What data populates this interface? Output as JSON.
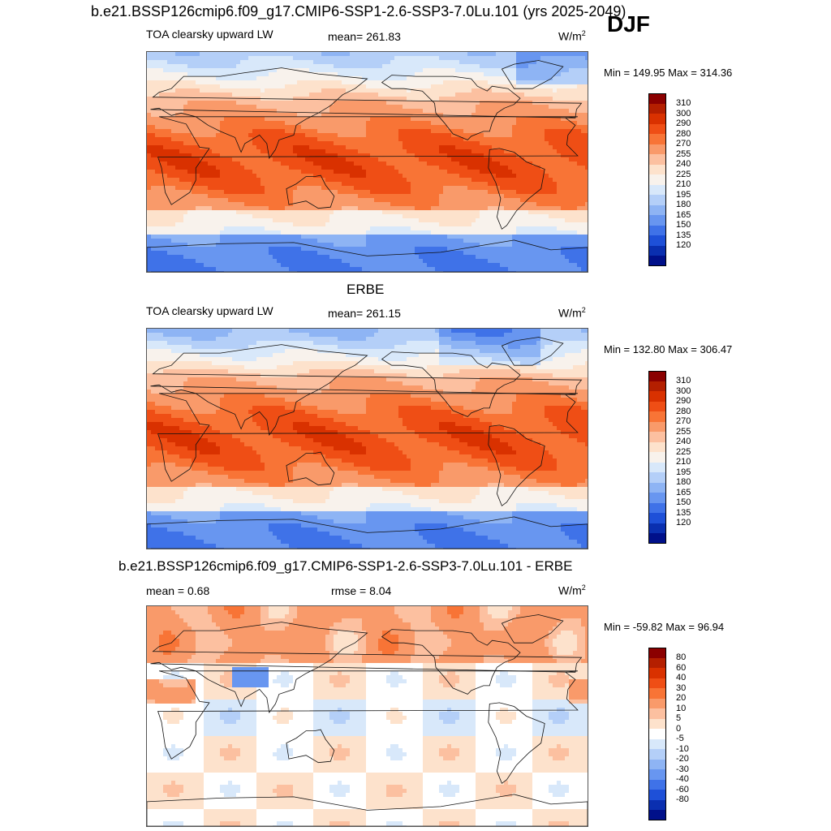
{
  "figure": {
    "main_title": "b.e21.BSSP126cmip6.f09_g17.CMIP6-SSP1-2.6-SSP3-7.0Lu.101 (yrs 2025-2049)",
    "season": "DJF"
  },
  "panels": [
    {
      "title": "",
      "left_label": "TOA clearsky upward LW",
      "center_label": "mean= 261.83",
      "units": "W/m",
      "units_exp": "2",
      "minmax": "Min = 149.95 Max = 314.36",
      "scale": "abs",
      "colorbar": {
        "levels": [
          "310",
          "300",
          "290",
          "280",
          "270",
          "255",
          "240",
          "225",
          "210",
          "195",
          "180",
          "165",
          "150",
          "135",
          "120"
        ],
        "colors": [
          "#8b0000",
          "#b41f00",
          "#d93100",
          "#ef4e15",
          "#f87436",
          "#f99a6a",
          "#fcc0a0",
          "#fde2cc",
          "#f8f2ec",
          "#d8e8fa",
          "#b4cff8",
          "#8eb4f4",
          "#6896f0",
          "#3f72e8",
          "#1e50d8",
          "#0a2fb0",
          "#00108a"
        ]
      }
    },
    {
      "title": "ERBE",
      "left_label": "TOA clearsky upward LW",
      "center_label": "mean= 261.15",
      "units": "W/m",
      "units_exp": "2",
      "minmax": "Min = 132.80 Max = 306.47",
      "scale": "abs",
      "colorbar": {
        "levels": [
          "310",
          "300",
          "290",
          "280",
          "270",
          "255",
          "240",
          "225",
          "210",
          "195",
          "180",
          "165",
          "150",
          "135",
          "120"
        ],
        "colors": [
          "#8b0000",
          "#b41f00",
          "#d93100",
          "#ef4e15",
          "#f87436",
          "#f99a6a",
          "#fcc0a0",
          "#fde2cc",
          "#f8f2ec",
          "#d8e8fa",
          "#b4cff8",
          "#8eb4f4",
          "#6896f0",
          "#3f72e8",
          "#1e50d8",
          "#0a2fb0",
          "#00108a"
        ]
      }
    },
    {
      "title": "b.e21.BSSP126cmip6.f09_g17.CMIP6-SSP1-2.6-SSP3-7.0Lu.101 - ERBE",
      "left_label": "mean =   0.68",
      "center_label": "rmse =   8.04",
      "units": "W/m",
      "units_exp": "2",
      "minmax": "Min = -59.82 Max =  96.94",
      "scale": "diff",
      "colorbar": {
        "levels": [
          "80",
          "60",
          "40",
          "30",
          "20",
          "10",
          "5",
          "0",
          "-5",
          "-10",
          "-20",
          "-30",
          "-40",
          "-60",
          "-80"
        ],
        "colors": [
          "#8b0000",
          "#b41f00",
          "#d93100",
          "#ef4e15",
          "#f87436",
          "#f99a6a",
          "#fcc0a0",
          "#fde2cc",
          "#ffffff",
          "#d8e8fa",
          "#b4cff8",
          "#8eb4f4",
          "#6896f0",
          "#3f72e8",
          "#1e50d8",
          "#0a2fb0",
          "#00108a"
        ]
      }
    }
  ]
}
